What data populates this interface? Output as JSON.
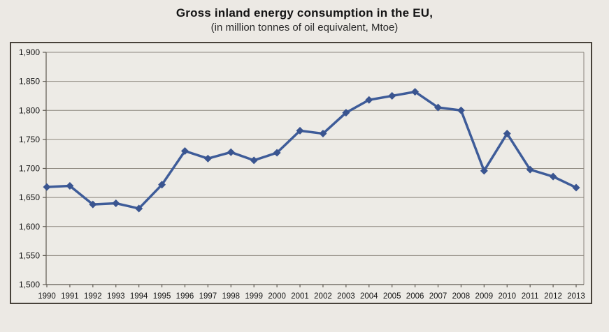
{
  "chart_data": {
    "type": "line",
    "title": "Gross inland energy consumption in the EU,",
    "subtitle": "(in million tonnes of oil equivalent, Mtoe)",
    "categories": [
      "1990",
      "1991",
      "1992",
      "1993",
      "1994",
      "1995",
      "1996",
      "1997",
      "1998",
      "1999",
      "2000",
      "2001",
      "2002",
      "2003",
      "2004",
      "2005",
      "2006",
      "2007",
      "2008",
      "2009",
      "2010",
      "2011",
      "2012",
      "2013"
    ],
    "series": [
      {
        "name": "Gross inland energy consumption (Mtoe)",
        "values": [
          1668,
          1670,
          1638,
          1640,
          1631,
          1672,
          1730,
          1717,
          1728,
          1714,
          1727,
          1765,
          1760,
          1796,
          1818,
          1825,
          1832,
          1805,
          1800,
          1696,
          1760,
          1698,
          1686,
          1667
        ]
      }
    ],
    "xlabel": "",
    "ylabel": "",
    "ylim": [
      1500,
      1900
    ],
    "ytick_step": 50,
    "grid": "horizontal",
    "legend": "none",
    "marker": "diamond",
    "colors": {
      "line": "#3E5C99",
      "marker": "#3A5590",
      "gridline": "#8C867D",
      "axis": "#5F5A52",
      "frame_border": "#48423A",
      "plot_background": "#EDEBE6",
      "page_background": "#ECE9E4",
      "text": "#141414"
    }
  }
}
